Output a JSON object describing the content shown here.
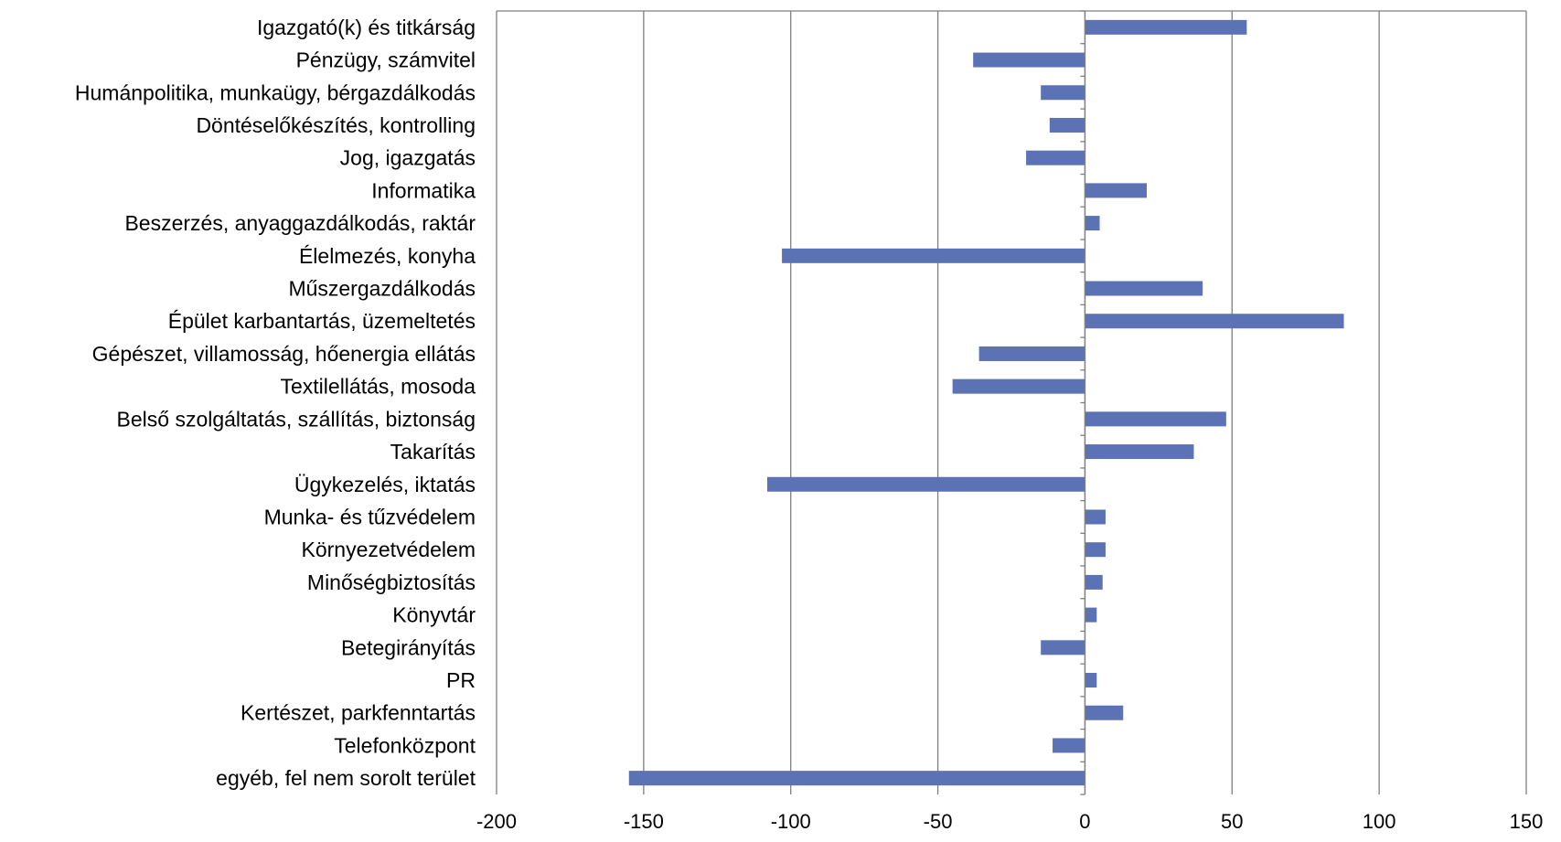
{
  "colors": {
    "bar": "#5B72B5",
    "grid": "#7f7f7f",
    "axis": "#7f7f7f",
    "text": "#000000",
    "background": "#ffffff"
  },
  "chart_data": {
    "type": "bar",
    "orientation": "horizontal",
    "title": "",
    "xlabel": "",
    "ylabel": "",
    "xlim": [
      -200,
      150
    ],
    "x_ticks": [
      -200,
      -150,
      -100,
      -50,
      0,
      50,
      100,
      150
    ],
    "grid": true,
    "legend": "none",
    "categories": [
      "Igazgató(k) és titkárság",
      "Pénzügy, számvitel",
      "Humánpolitika, munkaügy, bérgazdálkodás",
      "Döntéselőkészítés, kontrolling",
      "Jog, igazgatás",
      "Informatika",
      "Beszerzés, anyaggazdálkodás, raktár",
      "Élelmezés, konyha",
      "Műszergazdálkodás",
      "Épület karbantartás, üzemeltetés",
      "Gépészet, villamosság, hőenergia ellátás",
      "Textilellátás, mosoda",
      "Belső szolgáltatás, szállítás, biztonság",
      "Takarítás",
      "Ügykezelés, iktatás",
      "Munka- és tűzvédelem",
      "Környezetvédelem",
      "Minőségbiztosítás",
      "Könyvtár",
      "Betegirányítás",
      "PR",
      "Kertészet, parkfenntartás",
      "Telefonközpont",
      "egyéb, fel nem sorolt terület"
    ],
    "values": [
      55,
      -38,
      -15,
      -12,
      -20,
      21,
      5,
      -103,
      40,
      88,
      -36,
      -45,
      48,
      37,
      -108,
      7,
      7,
      6,
      4,
      -15,
      4,
      13,
      -11,
      -155
    ]
  }
}
